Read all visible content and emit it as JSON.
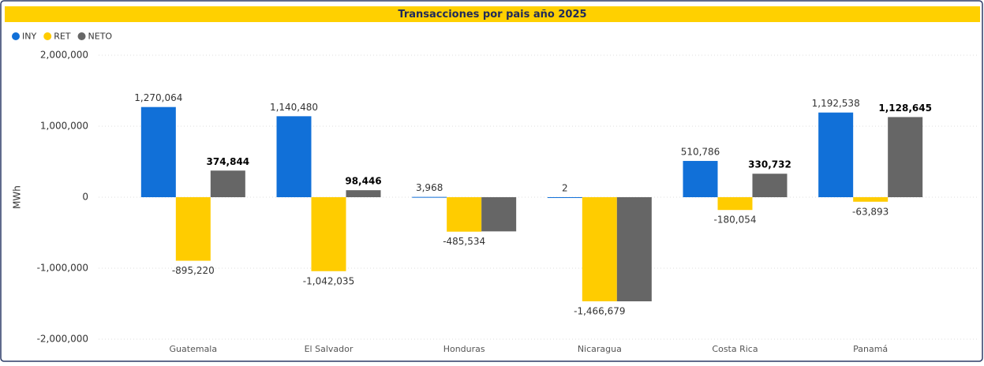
{
  "chart_data": {
    "type": "bar",
    "title": "Transacciones por pais año 2025",
    "y_label": "MWh",
    "categories": [
      "Guatemala",
      "El Salvador",
      "Honduras",
      "Nicaragua",
      "Costa Rica",
      "Panamá"
    ],
    "series": [
      {
        "name": "INY",
        "color": "#1170d8",
        "values": [
          1270064,
          1140480,
          3968,
          2,
          510786,
          1192538
        ],
        "value_labels": [
          "1,270,064",
          "1,140,480",
          "3,968",
          "2",
          "510,786",
          "1,192,538"
        ]
      },
      {
        "name": "RET",
        "color": "#ffcc00",
        "values": [
          -895220,
          -1042035,
          -485534,
          -1466679,
          -180054,
          -63893
        ],
        "value_labels": [
          "-895,220",
          "-1,042,035",
          "-485,534",
          "-1,466,679",
          "-180,054",
          "-63,893"
        ]
      },
      {
        "name": "NETO",
        "color": "#666666",
        "values": [
          374844,
          98446,
          -481566,
          -1466677,
          330732,
          1128645
        ],
        "value_labels": [
          "374,844",
          "98,446",
          null,
          null,
          "330,732",
          "1,128,645"
        ]
      }
    ],
    "ylim": [
      -2000000,
      2000000
    ],
    "yticks": [
      {
        "value": -2000000,
        "label": "-2,000,000"
      },
      {
        "value": -1000000,
        "label": "-1,000,000"
      },
      0,
      {
        "value": 1000000,
        "label": "1,000,000"
      },
      {
        "value": 2000000,
        "label": "2,000,000"
      }
    ],
    "grid": true,
    "legend": "top-left"
  }
}
